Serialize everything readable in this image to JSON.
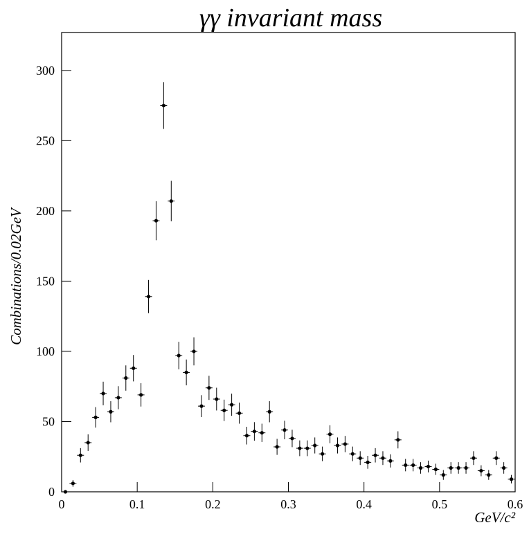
{
  "chart_data": {
    "type": "errorbar",
    "title": "γγ invariant mass",
    "x_label": "GeV/c²",
    "y_label": "Combinations/0.02GeV",
    "color": "#000000",
    "x": [
      0.005,
      0.015,
      0.025,
      0.035,
      0.045,
      0.055,
      0.065,
      0.075,
      0.085,
      0.095,
      0.105,
      0.115,
      0.125,
      0.135,
      0.145,
      0.155,
      0.165,
      0.175,
      0.185,
      0.195,
      0.205,
      0.215,
      0.225,
      0.235,
      0.245,
      0.255,
      0.265,
      0.275,
      0.285,
      0.295,
      0.305,
      0.315,
      0.325,
      0.335,
      0.345,
      0.355,
      0.365,
      0.375,
      0.385,
      0.395,
      0.405,
      0.415,
      0.425,
      0.435,
      0.445,
      0.455,
      0.465,
      0.475,
      0.485,
      0.495,
      0.505,
      0.515,
      0.525,
      0.535,
      0.545,
      0.555,
      0.565,
      0.575,
      0.585,
      0.595
    ],
    "values": [
      0,
      6,
      26,
      35,
      53,
      70,
      57,
      67,
      81,
      88,
      69,
      139,
      193,
      275,
      207,
      97,
      85,
      100,
      61,
      74,
      66,
      58,
      62,
      56,
      40,
      43,
      42,
      57,
      32,
      44,
      38,
      31,
      31,
      33,
      27,
      41,
      33,
      34,
      27,
      24,
      21,
      26,
      24,
      22,
      37,
      19,
      19,
      17,
      18,
      16,
      12,
      17,
      17,
      17,
      24,
      15,
      12,
      24,
      17,
      9
    ],
    "errors": [
      0,
      2.4,
      5.1,
      5.9,
      7.3,
      8.4,
      7.5,
      8.2,
      9,
      9.4,
      8.3,
      11.8,
      13.9,
      16.6,
      14.4,
      9.8,
      9.2,
      10,
      7.8,
      8.6,
      8.1,
      7.6,
      7.9,
      7.5,
      6.3,
      6.6,
      6.5,
      7.5,
      5.7,
      6.6,
      6.2,
      5.6,
      5.6,
      5.7,
      5.2,
      6.4,
      5.7,
      5.8,
      5.2,
      4.9,
      4.6,
      5.1,
      4.9,
      4.7,
      6.1,
      4.4,
      4.4,
      4.1,
      4.2,
      4,
      3.5,
      4.1,
      4.1,
      4.1,
      4.9,
      3.9,
      3.5,
      4.9,
      4.1,
      3
    ],
    "xlim": [
      0,
      0.6
    ],
    "xticks": [
      0,
      0.1,
      0.2,
      0.3,
      0.4,
      0.5,
      0.6
    ],
    "ylim": [
      0,
      327
    ],
    "yticks": [
      0,
      50,
      100,
      150,
      200,
      250,
      300
    ]
  }
}
